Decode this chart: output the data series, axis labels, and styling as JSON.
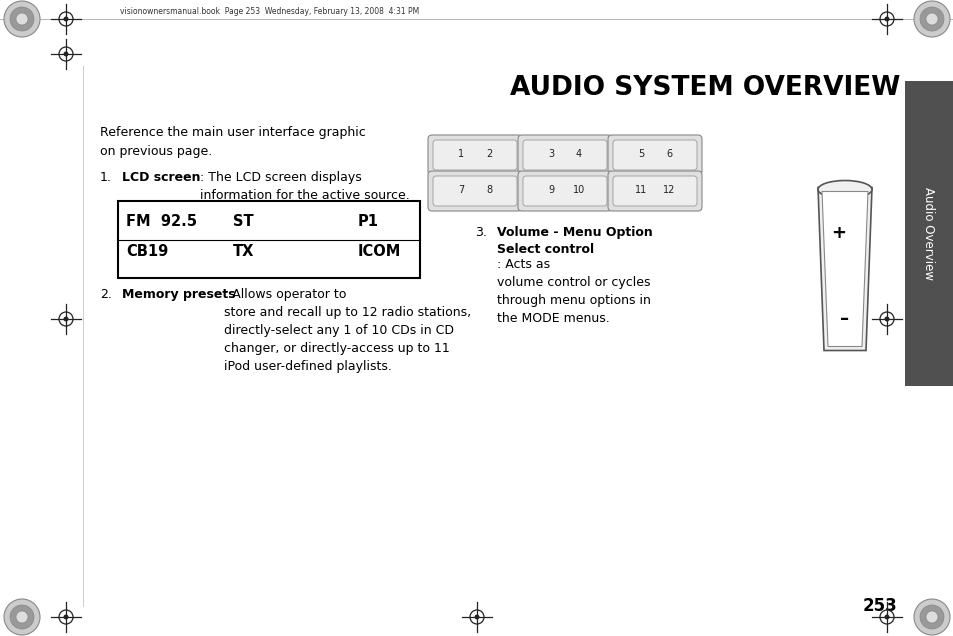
{
  "title": "AUDIO SYSTEM OVERVIEW",
  "header_text": "visionownersmanual.book  Page 253  Wednesday, February 13, 2008  4:31 PM",
  "page_number": "253",
  "sidebar_text": "Audio Overview",
  "background_color": "#ffffff",
  "sidebar_color": "#505050",
  "intro_text": "Reference the main user interface graphic\non previous page.",
  "item1_bold": "LCD screen",
  "item1_rest": ": The LCD screen displays\ninformation for the active source.",
  "lcd_row1_cols": [
    "FM  92.5",
    "ST",
    "P1"
  ],
  "lcd_row2_cols": [
    "CB19",
    "TX",
    "ICOM"
  ],
  "item2_bold": "Memory presets",
  "item2_rest": ": Allows operator to\nstore and recall up to 12 radio stations,\ndirectly-select any 1 of 10 CDs in CD\nchanger, or directly-access up to 11\niPod user-defined playlists.",
  "item3_bold": "Volume - Menu Option\nSelect control",
  "item3_rest": ": Acts as\nvolume control or cycles\nthrough menu options in\nthe MODE menus.",
  "preset_buttons_row1": [
    [
      "1",
      "2"
    ],
    [
      "3",
      "4"
    ],
    [
      "5",
      "6"
    ]
  ],
  "preset_buttons_row2": [
    [
      "7",
      "8"
    ],
    [
      "9",
      "10"
    ],
    [
      "11",
      "12"
    ]
  ]
}
